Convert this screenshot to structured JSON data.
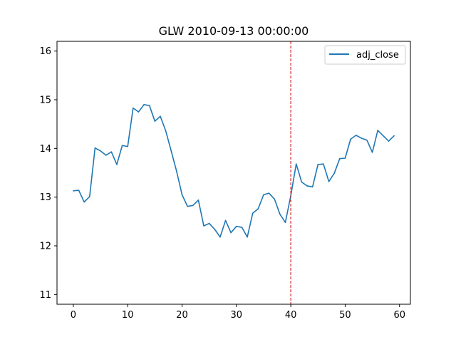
{
  "chart_data": {
    "type": "line",
    "title": "GLW 2010-09-13 00:00:00",
    "xlabel": "",
    "ylabel": "",
    "xlim": [
      -3,
      62
    ],
    "ylim": [
      10.8,
      16.2
    ],
    "xticks": [
      0,
      10,
      20,
      30,
      40,
      50,
      60
    ],
    "yticks": [
      11,
      12,
      13,
      14,
      15,
      16
    ],
    "grid": false,
    "legend": {
      "position": "top-right"
    },
    "vline": {
      "x": 40,
      "color": "#d62728",
      "style": "dashed"
    },
    "series": [
      {
        "name": "adj_close",
        "color": "#1f77b4",
        "x": [
          0,
          1,
          2,
          3,
          4,
          5,
          6,
          7,
          8,
          9,
          10,
          11,
          12,
          13,
          14,
          15,
          16,
          17,
          18,
          19,
          20,
          21,
          22,
          23,
          24,
          25,
          26,
          27,
          28,
          29,
          30,
          31,
          32,
          33,
          34,
          35,
          36,
          37,
          38,
          39,
          40,
          41,
          42,
          43,
          44,
          45,
          46,
          47,
          48,
          49,
          50,
          51,
          52,
          53,
          54,
          55,
          56,
          57,
          58,
          59
        ],
        "values": [
          13.13,
          13.14,
          12.9,
          13.01,
          14.01,
          13.95,
          13.86,
          13.93,
          13.67,
          14.06,
          14.04,
          14.83,
          14.75,
          14.9,
          14.88,
          14.56,
          14.66,
          14.36,
          13.95,
          13.53,
          13.05,
          12.81,
          12.83,
          12.94,
          12.41,
          12.46,
          12.34,
          12.18,
          12.52,
          12.27,
          12.4,
          12.38,
          12.18,
          12.67,
          12.76,
          13.05,
          13.08,
          12.96,
          12.65,
          12.48,
          13.03,
          13.68,
          13.31,
          13.23,
          13.21,
          13.67,
          13.68,
          13.32,
          13.49,
          13.79,
          13.8,
          14.19,
          14.27,
          14.21,
          14.17,
          13.92,
          14.37,
          14.26,
          14.15,
          14.26
        ]
      }
    ]
  }
}
